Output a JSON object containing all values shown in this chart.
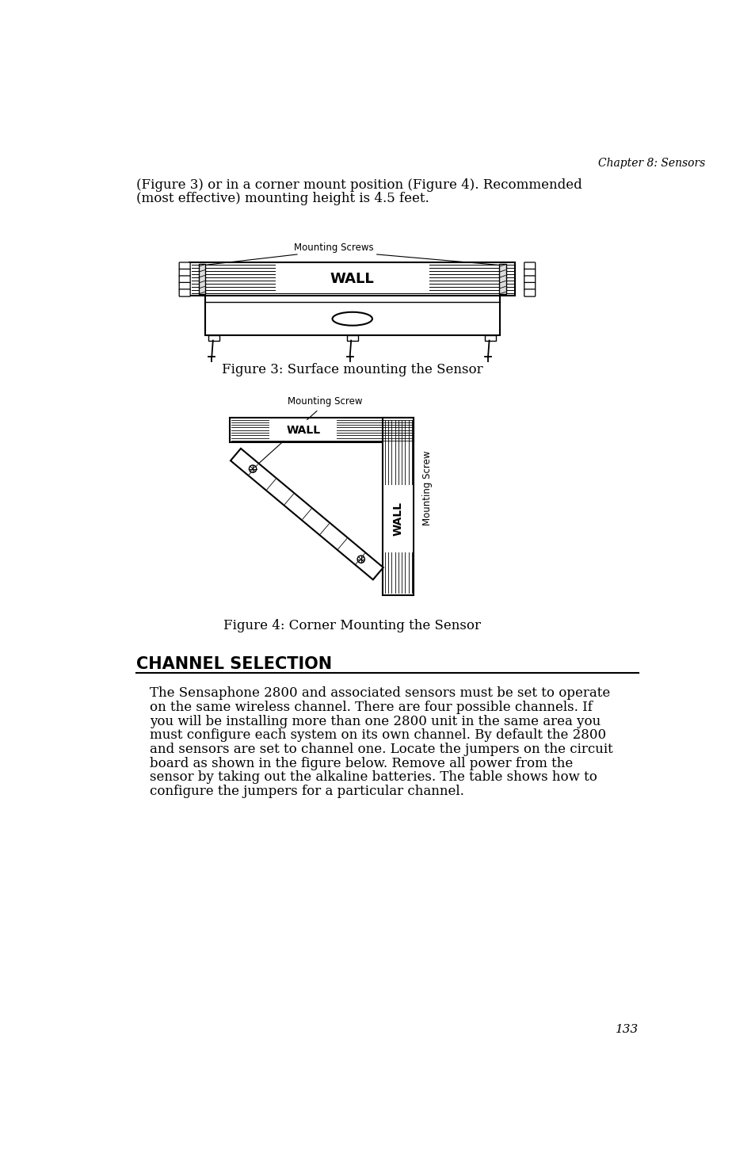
{
  "bg_color": "#ffffff",
  "text_color": "#000000",
  "chapter_header": "Chapter 8: Sensors",
  "intro_line1": "(Figure 3) or in a corner mount position (Figure 4). Recommended",
  "intro_line2": "(most effective) mounting height is 4.5 feet.",
  "fig3_caption": "Figure 3: Surface mounting the Sensor",
  "fig4_caption": "Figure 4: Corner Mounting the Sensor",
  "section_title": "CHANNEL SELECTION",
  "body_lines": [
    "The Sensaphone 2800 and associated sensors must be set to operate",
    "on the same wireless channel. There are four possible channels. If",
    "you will be installing more than one 2800 unit in the same area you",
    "must configure each system on its own channel. By default the 2800",
    "and sensors are set to channel one. Locate the jumpers on the circuit",
    "board as shown in the figure below. Remove all power from the",
    "sensor by taking out the alkaline batteries. The table shows how to",
    "configure the jumpers for a particular channel."
  ],
  "page_number": "133",
  "wall_label": "WALL",
  "mounting_screws": "Mounting Screws",
  "mounting_screw": "Mounting Screw"
}
